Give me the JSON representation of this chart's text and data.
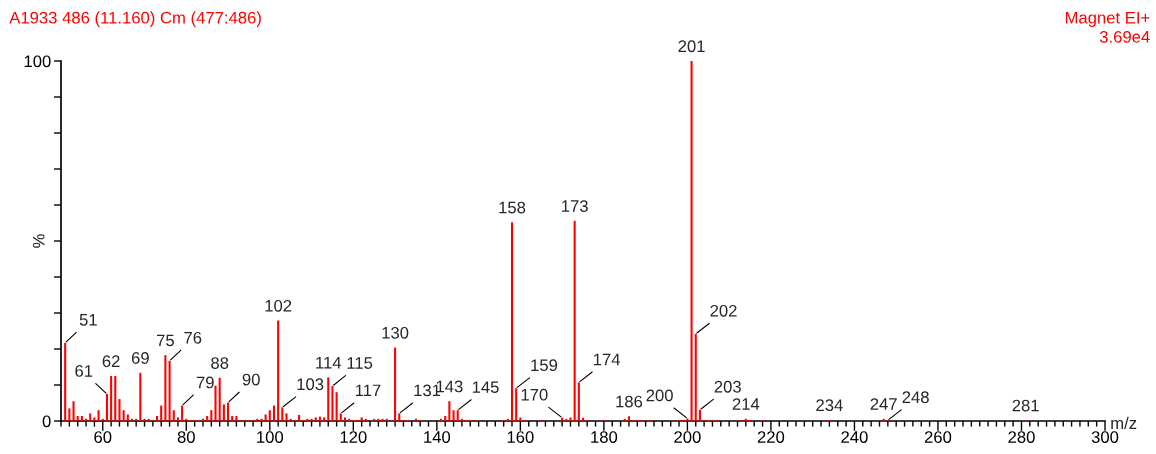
{
  "chart_data": {
    "type": "bar",
    "title": "A1933 486 (11.160) Cm (477:486)",
    "xlabel": "m/z",
    "ylabel": "%",
    "x": [
      51,
      52,
      53,
      54,
      55,
      56,
      57,
      58,
      59,
      60,
      61,
      62,
      63,
      64,
      65,
      66,
      67,
      68,
      69,
      70,
      71,
      72,
      73,
      74,
      75,
      76,
      77,
      78,
      79,
      80,
      81,
      82,
      83,
      84,
      85,
      86,
      87,
      88,
      89,
      90,
      91,
      92,
      93,
      94,
      95,
      96,
      97,
      98,
      99,
      100,
      101,
      102,
      103,
      104,
      105,
      106,
      107,
      108,
      109,
      110,
      111,
      112,
      113,
      114,
      115,
      116,
      117,
      118,
      119,
      120,
      121,
      122,
      123,
      125,
      126,
      127,
      128,
      130,
      131,
      132,
      133,
      135,
      136,
      141,
      142,
      143,
      144,
      145,
      146,
      147,
      148,
      149,
      156,
      157,
      158,
      159,
      160,
      161,
      165,
      170,
      171,
      172,
      173,
      174,
      175,
      176,
      180,
      185,
      186,
      187,
      188,
      189,
      191,
      198,
      199,
      200,
      201,
      202,
      203,
      204,
      205,
      206,
      207,
      213,
      214,
      215,
      218,
      234,
      247,
      248,
      281
    ],
    "values": [
      21.7,
      3.5,
      5.5,
      1.4,
      1.4,
      0.6,
      2.1,
      1.0,
      3.0,
      0.6,
      7.5,
      12.5,
      12.5,
      6.1,
      3.0,
      1.8,
      0.6,
      0.6,
      13.4,
      0.6,
      0.6,
      0.3,
      1.4,
      4.3,
      18.3,
      16.7,
      3.0,
      1.0,
      4.3,
      0.6,
      0.3,
      0.3,
      0.3,
      0.6,
      1.4,
      3.0,
      9.8,
      12.0,
      4.6,
      5.1,
      1.4,
      1.4,
      0.3,
      0.3,
      0.3,
      0.3,
      0.6,
      0.6,
      1.8,
      3.0,
      4.3,
      27.9,
      3.8,
      2.1,
      0.6,
      0.3,
      1.7,
      0.3,
      0.6,
      0.6,
      1.0,
      1.2,
      1.0,
      12.1,
      9.7,
      8.0,
      2.1,
      1.0,
      0.6,
      0.3,
      0.3,
      1.0,
      0.6,
      0.6,
      0.6,
      0.6,
      0.6,
      20.4,
      2.1,
      0.3,
      0.3,
      0.6,
      0.3,
      0.6,
      1.4,
      5.5,
      3.0,
      3.0,
      0.6,
      0.3,
      0.3,
      0.3,
      0.3,
      0.6,
      55.2,
      9.1,
      1.0,
      0.3,
      0.3,
      0.9,
      0.6,
      1.0,
      55.6,
      10.7,
      0.9,
      0.3,
      0.3,
      0.6,
      1.3,
      0.3,
      0.3,
      0.3,
      0.3,
      0.3,
      0.3,
      0.7,
      100,
      24.2,
      3.1,
      0.3,
      0.3,
      0.3,
      0.3,
      0.3,
      0.6,
      0.3,
      0.3,
      0.3,
      0.6,
      0.2,
      0.2
    ],
    "color": "#ff0000",
    "xlim": [
      50,
      300
    ],
    "xticks": [
      {
        "value": 50,
        "label": null
      },
      {
        "value": 52,
        "label": null
      },
      {
        "value": 54,
        "label": null
      },
      {
        "value": 56,
        "label": null
      },
      {
        "value": 58,
        "label": null
      },
      60,
      {
        "value": 62,
        "label": null
      },
      {
        "value": 64,
        "label": null
      },
      {
        "value": 66,
        "label": null
      },
      {
        "value": 68,
        "label": null
      },
      {
        "value": 70,
        "label": null
      },
      {
        "value": 72,
        "label": null
      },
      {
        "value": 74,
        "label": null
      },
      {
        "value": 76,
        "label": null
      },
      {
        "value": 78,
        "label": null
      },
      80,
      {
        "value": 82,
        "label": null
      },
      {
        "value": 84,
        "label": null
      },
      {
        "value": 86,
        "label": null
      },
      {
        "value": 88,
        "label": null
      },
      {
        "value": 90,
        "label": null
      },
      {
        "value": 92,
        "label": null
      },
      {
        "value": 94,
        "label": null
      },
      {
        "value": 96,
        "label": null
      },
      {
        "value": 98,
        "label": null
      },
      100,
      {
        "value": 102,
        "label": null
      },
      {
        "value": 104,
        "label": null
      },
      {
        "value": 106,
        "label": null
      },
      {
        "value": 108,
        "label": null
      },
      {
        "value": 110,
        "label": null
      },
      {
        "value": 112,
        "label": null
      },
      {
        "value": 114,
        "label": null
      },
      {
        "value": 116,
        "label": null
      },
      {
        "value": 118,
        "label": null
      },
      120,
      {
        "value": 122,
        "label": null
      },
      {
        "value": 124,
        "label": null
      },
      {
        "value": 126,
        "label": null
      },
      {
        "value": 128,
        "label": null
      },
      {
        "value": 130,
        "label": null
      },
      {
        "value": 132,
        "label": null
      },
      {
        "value": 134,
        "label": null
      },
      {
        "value": 136,
        "label": null
      },
      {
        "value": 138,
        "label": null
      },
      140,
      {
        "value": 142,
        "label": null
      },
      {
        "value": 144,
        "label": null
      },
      {
        "value": 146,
        "label": null
      },
      {
        "value": 148,
        "label": null
      },
      {
        "value": 150,
        "label": null
      },
      {
        "value": 152,
        "label": null
      },
      {
        "value": 154,
        "label": null
      },
      {
        "value": 156,
        "label": null
      },
      {
        "value": 158,
        "label": null
      },
      160,
      {
        "value": 162,
        "label": null
      },
      {
        "value": 164,
        "label": null
      },
      {
        "value": 166,
        "label": null
      },
      {
        "value": 168,
        "label": null
      },
      {
        "value": 170,
        "label": null
      },
      {
        "value": 172,
        "label": null
      },
      {
        "value": 174,
        "label": null
      },
      {
        "value": 176,
        "label": null
      },
      {
        "value": 178,
        "label": null
      },
      180,
      {
        "value": 182,
        "label": null
      },
      {
        "value": 184,
        "label": null
      },
      {
        "value": 186,
        "label": null
      },
      {
        "value": 188,
        "label": null
      },
      {
        "value": 190,
        "label": null
      },
      {
        "value": 192,
        "label": null
      },
      {
        "value": 194,
        "label": null
      },
      {
        "value": 196,
        "label": null
      },
      {
        "value": 198,
        "label": null
      },
      200,
      {
        "value": 202,
        "label": null
      },
      {
        "value": 204,
        "label": null
      },
      {
        "value": 206,
        "label": null
      },
      {
        "value": 208,
        "label": null
      },
      {
        "value": 210,
        "label": null
      },
      {
        "value": 212,
        "label": null
      },
      {
        "value": 214,
        "label": null
      },
      {
        "value": 216,
        "label": null
      },
      {
        "value": 218,
        "label": null
      },
      220,
      {
        "value": 222,
        "label": null
      },
      {
        "value": 224,
        "label": null
      },
      {
        "value": 226,
        "label": null
      },
      {
        "value": 228,
        "label": null
      },
      {
        "value": 230,
        "label": null
      },
      {
        "value": 232,
        "label": null
      },
      {
        "value": 234,
        "label": null
      },
      {
        "value": 236,
        "label": null
      },
      {
        "value": 238,
        "label": null
      },
      240,
      {
        "value": 242,
        "label": null
      },
      {
        "value": 244,
        "label": null
      },
      {
        "value": 246,
        "label": null
      },
      {
        "value": 248,
        "label": null
      },
      {
        "value": 250,
        "label": null
      },
      {
        "value": 252,
        "label": null
      },
      {
        "value": 254,
        "label": null
      },
      {
        "value": 256,
        "label": null
      },
      {
        "value": 258,
        "label": null
      },
      260,
      {
        "value": 262,
        "label": null
      },
      {
        "value": 264,
        "label": null
      },
      {
        "value": 266,
        "label": null
      },
      {
        "value": 268,
        "label": null
      },
      {
        "value": 270,
        "label": null
      },
      {
        "value": 272,
        "label": null
      },
      {
        "value": 274,
        "label": null
      },
      {
        "value": 276,
        "label": null
      },
      {
        "value": 278,
        "label": null
      },
      280,
      {
        "value": 282,
        "label": null
      },
      {
        "value": 284,
        "label": null
      },
      {
        "value": 286,
        "label": null
      },
      {
        "value": 288,
        "label": null
      },
      {
        "value": 290,
        "label": null
      },
      {
        "value": 292,
        "label": null
      },
      {
        "value": 294,
        "label": null
      },
      {
        "value": 296,
        "label": null
      },
      {
        "value": 298,
        "label": null
      },
      300
    ],
    "ylim": [
      0,
      100
    ],
    "yticks": [
      0,
      {
        "value": 10,
        "label": null
      },
      {
        "value": 20,
        "label": null
      },
      {
        "value": 30,
        "label": null
      },
      {
        "value": 40,
        "label": null
      },
      {
        "value": 50,
        "label": null
      },
      {
        "value": 60,
        "label": null
      },
      {
        "value": 70,
        "label": null
      },
      {
        "value": 80,
        "label": null
      },
      {
        "value": 90,
        "label": null
      },
      100
    ],
    "grid": false,
    "annotations": [
      "Magnet EI+\n3.69e4",
      {
        "text": "51",
        "x": 51,
        "y": 21.7
      },
      {
        "text": "61",
        "x": 61,
        "y": 7.5
      },
      {
        "text": "62",
        "x": 62,
        "y": 12.5
      },
      {
        "text": "69",
        "x": 69,
        "y": 13.4
      },
      {
        "text": "75",
        "x": 75,
        "y": 18.3
      },
      {
        "text": "76",
        "x": 76,
        "y": 16.7
      },
      {
        "text": "79",
        "x": 79,
        "y": 4.3
      },
      {
        "text": "88",
        "x": 88,
        "y": 12.0
      },
      {
        "text": "90",
        "x": 90,
        "y": 5.1
      },
      {
        "text": "102",
        "x": 102,
        "y": 27.9
      },
      {
        "text": "103",
        "x": 103,
        "y": 3.8
      },
      {
        "text": "114",
        "x": 114,
        "y": 12.1
      },
      {
        "text": "115",
        "x": 115,
        "y": 9.7
      },
      {
        "text": "117",
        "x": 117,
        "y": 2.1
      },
      {
        "text": "130",
        "x": 130,
        "y": 20.4
      },
      {
        "text": "131",
        "x": 131,
        "y": 2.1
      },
      {
        "text": "143",
        "x": 143,
        "y": 5.5
      },
      {
        "text": "145",
        "x": 145,
        "y": 3.0
      },
      {
        "text": "158",
        "x": 158,
        "y": 55.2
      },
      {
        "text": "159",
        "x": 159,
        "y": 9.1
      },
      {
        "text": "170",
        "x": 170,
        "y": 0.9
      },
      {
        "text": "173",
        "x": 173,
        "y": 55.6
      },
      {
        "text": "174",
        "x": 174,
        "y": 10.7
      },
      {
        "text": "186",
        "x": 186,
        "y": 1.3
      },
      {
        "text": "200",
        "x": 200,
        "y": 0.7
      },
      {
        "text": "201",
        "x": 201,
        "y": 100
      },
      {
        "text": "202",
        "x": 202,
        "y": 24.2
      },
      {
        "text": "203",
        "x": 203,
        "y": 3.1
      },
      {
        "text": "214",
        "x": 214,
        "y": 0.6
      },
      {
        "text": "234",
        "x": 234,
        "y": 0.3
      },
      {
        "text": "247",
        "x": 247,
        "y": 0.6
      },
      {
        "text": "248",
        "x": 248,
        "y": 0.2
      },
      {
        "text": "281",
        "x": 281,
        "y": 0.2
      }
    ]
  }
}
